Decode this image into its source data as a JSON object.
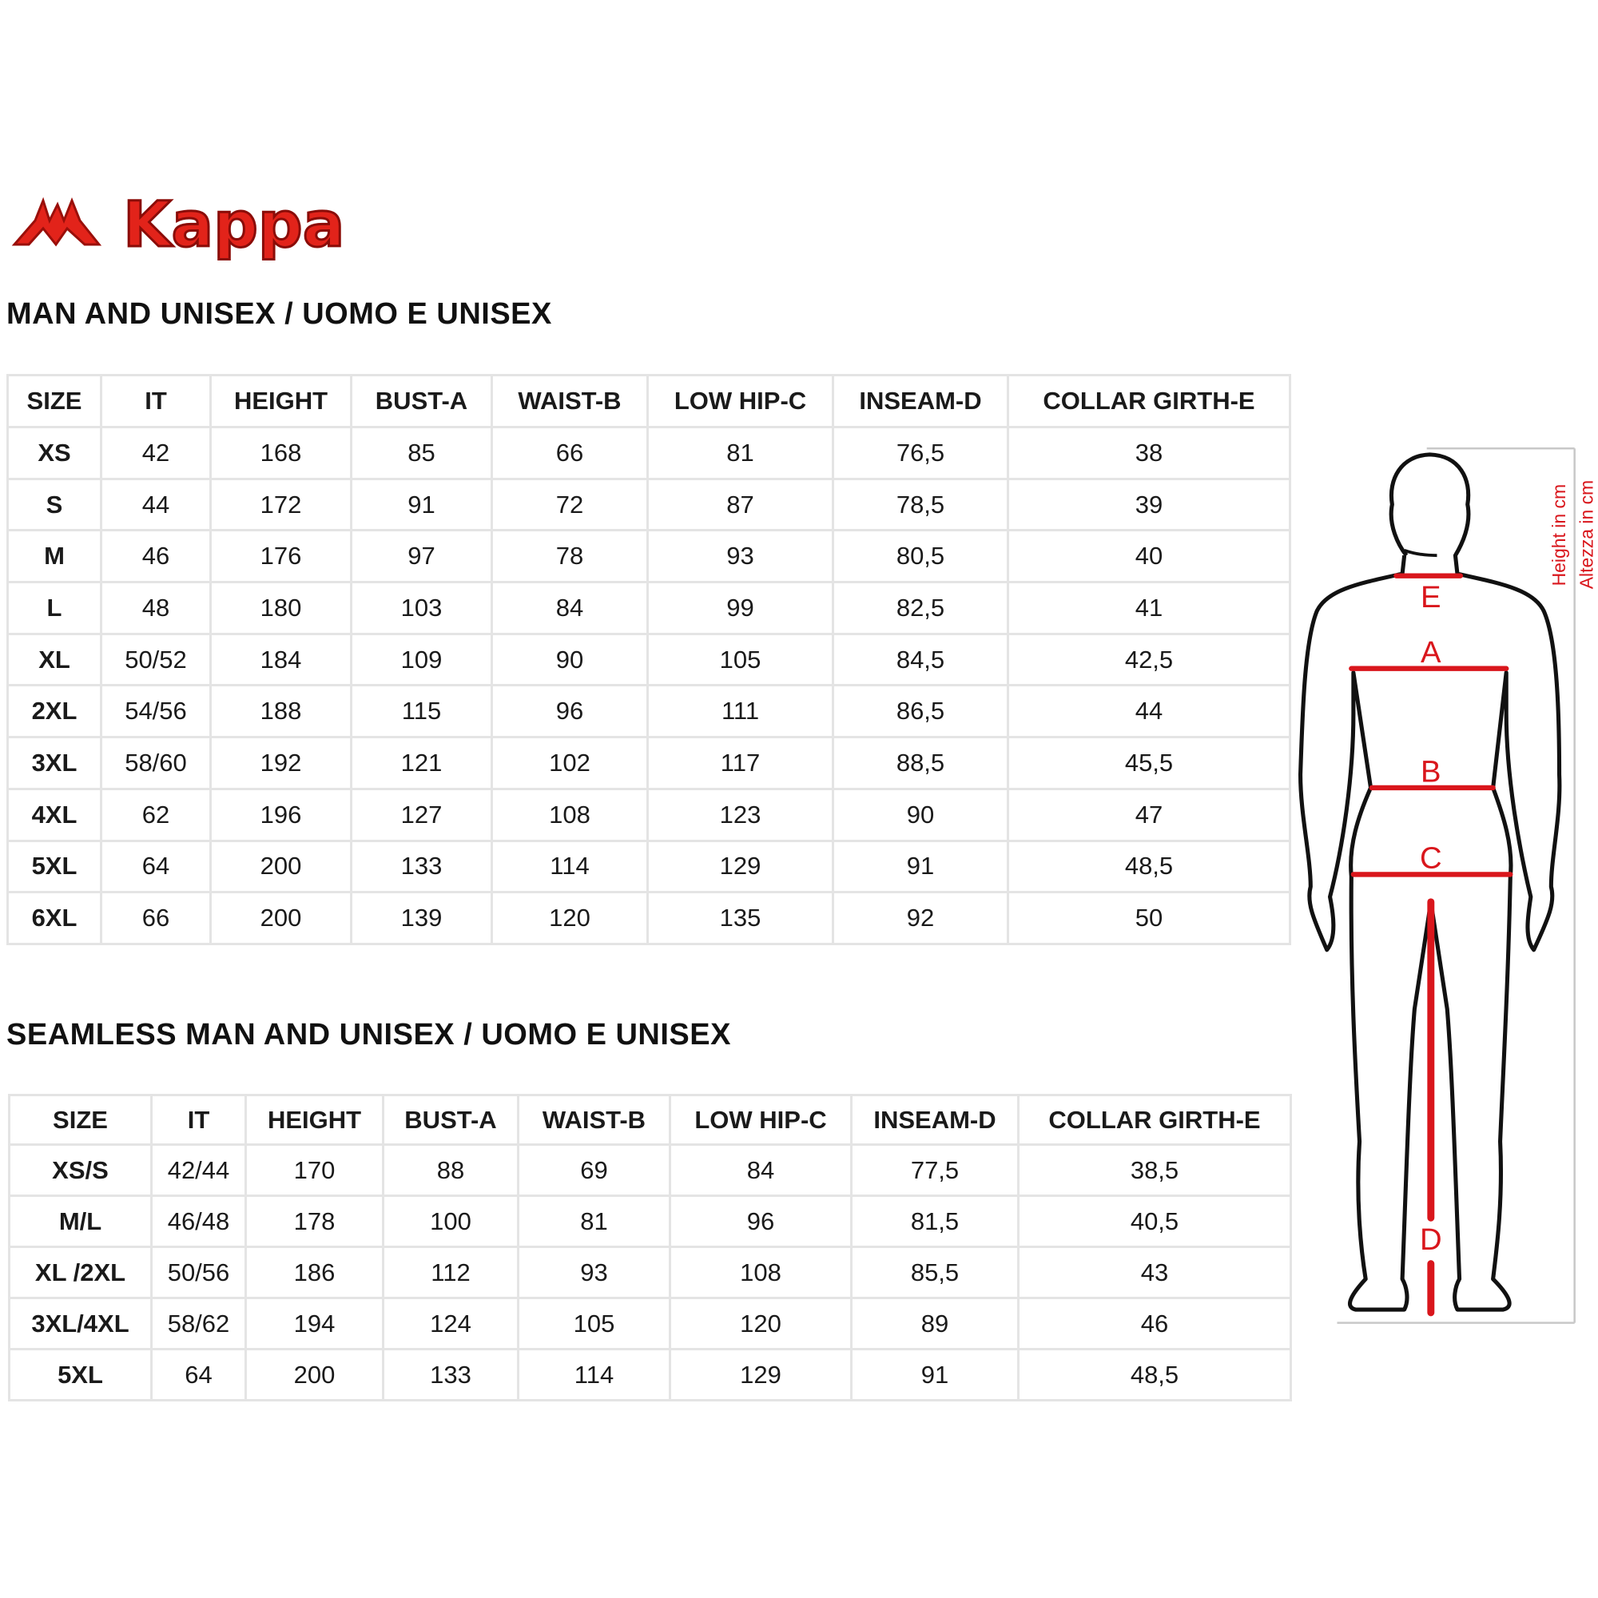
{
  "brand": {
    "logo_text": "Kappa",
    "color": "#e2231a"
  },
  "sections": [
    {
      "title": "MAN AND UNISEX / UOMO E UNISEX",
      "headers": [
        "SIZE",
        "IT",
        "HEIGHT",
        "BUST-A",
        "WAIST-B",
        "LOW HIP-C",
        "INSEAM-D",
        "COLLAR GIRTH-E"
      ],
      "rows": [
        [
          "XS",
          "42",
          "168",
          "85",
          "66",
          "81",
          "76,5",
          "38"
        ],
        [
          "S",
          "44",
          "172",
          "91",
          "72",
          "87",
          "78,5",
          "39"
        ],
        [
          "M",
          "46",
          "176",
          "97",
          "78",
          "93",
          "80,5",
          "40"
        ],
        [
          "L",
          "48",
          "180",
          "103",
          "84",
          "99",
          "82,5",
          "41"
        ],
        [
          "XL",
          "50/52",
          "184",
          "109",
          "90",
          "105",
          "84,5",
          "42,5"
        ],
        [
          "2XL",
          "54/56",
          "188",
          "115",
          "96",
          "111",
          "86,5",
          "44"
        ],
        [
          "3XL",
          "58/60",
          "192",
          "121",
          "102",
          "117",
          "88,5",
          "45,5"
        ],
        [
          "4XL",
          "62",
          "196",
          "127",
          "108",
          "123",
          "90",
          "47"
        ],
        [
          "5XL",
          "64",
          "200",
          "133",
          "114",
          "129",
          "91",
          "48,5"
        ],
        [
          "6XL",
          "66",
          "200",
          "139",
          "120",
          "135",
          "92",
          "50"
        ]
      ]
    },
    {
      "title": "SEAMLESS MAN AND UNISEX / UOMO E UNISEX",
      "headers": [
        "SIZE",
        "IT",
        "HEIGHT",
        "BUST-A",
        "WAIST-B",
        "LOW HIP-C",
        "INSEAM-D",
        "COLLAR GIRTH-E"
      ],
      "rows": [
        [
          "XS/S",
          "42/44",
          "170",
          "88",
          "69",
          "84",
          "77,5",
          "38,5"
        ],
        [
          "M/L",
          "46/48",
          "178",
          "100",
          "81",
          "96",
          "81,5",
          "40,5"
        ],
        [
          "XL /2XL",
          "50/56",
          "186",
          "112",
          "93",
          "108",
          "85,5",
          "43"
        ],
        [
          "3XL/4XL",
          "58/62",
          "194",
          "124",
          "105",
          "120",
          "89",
          "46"
        ],
        [
          "5XL",
          "64",
          "200",
          "133",
          "114",
          "129",
          "91",
          "48,5"
        ]
      ]
    }
  ],
  "figure": {
    "labels": {
      "E": "E",
      "A": "A",
      "B": "B",
      "C": "C",
      "D": "D"
    },
    "height_en": "Height in cm",
    "height_it": "Altezza in cm",
    "accent": "#d9161c"
  }
}
